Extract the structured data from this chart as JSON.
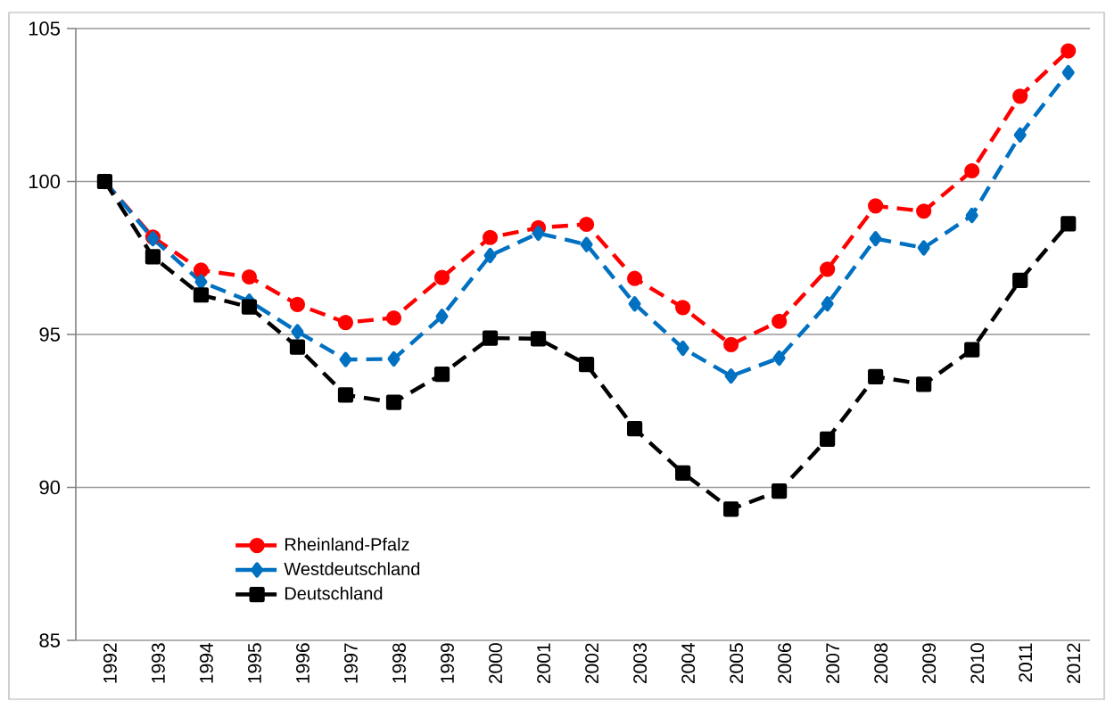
{
  "chart_data": {
    "type": "line",
    "categories": [
      "1992",
      "1993",
      "1994",
      "1995",
      "1996",
      "1997",
      "1998",
      "1999",
      "2000",
      "2001",
      "2002",
      "2003",
      "2004",
      "2005",
      "2006",
      "2007",
      "2008",
      "2009",
      "2010",
      "2011",
      "2012"
    ],
    "series": [
      {
        "name": "Rheinland-Pfalz",
        "color": "#ff0000",
        "marker": "circle",
        "values": [
          100,
          98.18,
          97.1,
          96.88,
          95.98,
          95.39,
          95.54,
          96.86,
          98.17,
          98.49,
          98.6,
          96.83,
          95.88,
          94.67,
          95.43,
          97.13,
          99.2,
          99.03,
          100.35,
          102.79,
          104.27
        ]
      },
      {
        "name": "Westdeutschland",
        "color": "#0070c0",
        "marker": "diamond",
        "values": [
          100,
          98.13,
          96.72,
          96.09,
          95.09,
          94.18,
          94.2,
          95.59,
          97.58,
          98.31,
          97.94,
          96.0,
          94.55,
          93.64,
          94.23,
          96.0,
          98.13,
          97.83,
          98.89,
          101.52,
          103.56
        ]
      },
      {
        "name": "Deutschland",
        "color": "#000000",
        "marker": "square",
        "values": [
          100,
          97.54,
          96.29,
          95.9,
          94.59,
          93.02,
          92.78,
          93.7,
          94.88,
          94.86,
          94.02,
          91.92,
          90.47,
          89.29,
          89.88,
          91.58,
          93.62,
          93.37,
          94.5,
          96.77,
          98.62
        ]
      }
    ],
    "ylim": [
      85,
      105
    ],
    "yticks": [
      85,
      90,
      95,
      100,
      105
    ],
    "grid": "y",
    "legend": "bottom left",
    "line_style": "dashed"
  }
}
